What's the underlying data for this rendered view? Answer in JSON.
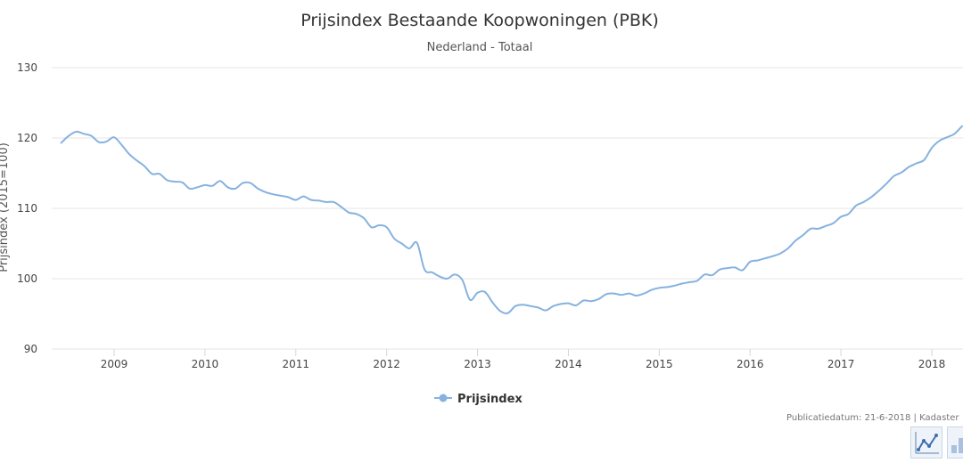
{
  "chart_data": {
    "type": "line",
    "title": "Prijsindex Bestaande Koopwoningen (PBK)",
    "subtitle": "Nederland - Totaal",
    "ylabel": "Prijsindex (2015=100)",
    "xlabel": "",
    "ylim": [
      90,
      130
    ],
    "yticks": [
      90,
      100,
      110,
      120,
      130
    ],
    "xticks": [
      "2009",
      "2010",
      "2011",
      "2012",
      "2013",
      "2014",
      "2015",
      "2016",
      "2017",
      "2018"
    ],
    "grid": true,
    "legend": "bottom-center",
    "series": [
      {
        "name": "Prijsindex",
        "color": "#86b2df",
        "x": [
          "2008-06",
          "2008-07",
          "2008-08",
          "2008-09",
          "2008-10",
          "2008-11",
          "2008-12",
          "2009-01",
          "2009-02",
          "2009-03",
          "2009-04",
          "2009-05",
          "2009-06",
          "2009-07",
          "2009-08",
          "2009-09",
          "2009-10",
          "2009-11",
          "2009-12",
          "2010-01",
          "2010-02",
          "2010-03",
          "2010-04",
          "2010-05",
          "2010-06",
          "2010-07",
          "2010-08",
          "2010-09",
          "2010-10",
          "2010-11",
          "2010-12",
          "2011-01",
          "2011-02",
          "2011-03",
          "2011-04",
          "2011-05",
          "2011-06",
          "2011-07",
          "2011-08",
          "2011-09",
          "2011-10",
          "2011-11",
          "2011-12",
          "2012-01",
          "2012-02",
          "2012-03",
          "2012-04",
          "2012-05",
          "2012-06",
          "2012-07",
          "2012-08",
          "2012-09",
          "2012-10",
          "2012-11",
          "2012-12",
          "2013-01",
          "2013-02",
          "2013-03",
          "2013-04",
          "2013-05",
          "2013-06",
          "2013-07",
          "2013-08",
          "2013-09",
          "2013-10",
          "2013-11",
          "2013-12",
          "2014-01",
          "2014-02",
          "2014-03",
          "2014-04",
          "2014-05",
          "2014-06",
          "2014-07",
          "2014-08",
          "2014-09",
          "2014-10",
          "2014-11",
          "2014-12",
          "2015-01",
          "2015-02",
          "2015-03",
          "2015-04",
          "2015-05",
          "2015-06",
          "2015-07",
          "2015-08",
          "2015-09",
          "2015-10",
          "2015-11",
          "2015-12",
          "2016-01",
          "2016-02",
          "2016-03",
          "2016-04",
          "2016-05",
          "2016-06",
          "2016-07",
          "2016-08",
          "2016-09",
          "2016-10",
          "2016-11",
          "2016-12",
          "2017-01",
          "2017-02",
          "2017-03",
          "2017-04",
          "2017-05",
          "2017-06",
          "2017-07",
          "2017-08",
          "2017-09",
          "2017-10",
          "2017-11",
          "2017-12",
          "2018-01",
          "2018-02",
          "2018-03",
          "2018-04",
          "2018-05"
        ],
        "values": [
          119.3,
          120.3,
          120.9,
          120.6,
          120.3,
          119.4,
          119.5,
          120.1,
          119.0,
          117.7,
          116.8,
          116.0,
          114.9,
          114.9,
          114.0,
          113.8,
          113.7,
          112.8,
          113.0,
          113.3,
          113.2,
          113.9,
          113.0,
          112.8,
          113.6,
          113.6,
          112.8,
          112.3,
          112.0,
          111.8,
          111.6,
          111.2,
          111.7,
          111.2,
          111.1,
          110.9,
          110.9,
          110.2,
          109.4,
          109.2,
          108.6,
          107.3,
          107.6,
          107.3,
          105.7,
          105.0,
          104.3,
          105.1,
          101.3,
          100.9,
          100.3,
          100.0,
          100.6,
          99.8,
          97.0,
          98.0,
          98.1,
          96.6,
          95.4,
          95.1,
          96.1,
          96.3,
          96.1,
          95.9,
          95.5,
          96.1,
          96.4,
          96.5,
          96.2,
          96.9,
          96.8,
          97.1,
          97.8,
          97.9,
          97.7,
          97.9,
          97.6,
          97.9,
          98.4,
          98.7,
          98.8,
          99.0,
          99.3,
          99.5,
          99.7,
          100.6,
          100.5,
          101.3,
          101.5,
          101.6,
          101.2,
          102.4,
          102.6,
          102.9,
          103.2,
          103.6,
          104.3,
          105.4,
          106.2,
          107.1,
          107.1,
          107.5,
          107.9,
          108.8,
          109.2,
          110.4,
          110.9,
          111.6,
          112.5,
          113.5,
          114.6,
          115.1,
          115.9,
          116.4,
          116.9,
          118.6,
          119.6,
          120.1,
          120.6,
          121.7
        ]
      }
    ],
    "credits": "Publicatiedatum: 21-6-2018 | Kadaster"
  },
  "toolbar": {
    "line_chart_icon": "line-chart-icon",
    "bar_chart_icon": "bar-chart-icon"
  }
}
